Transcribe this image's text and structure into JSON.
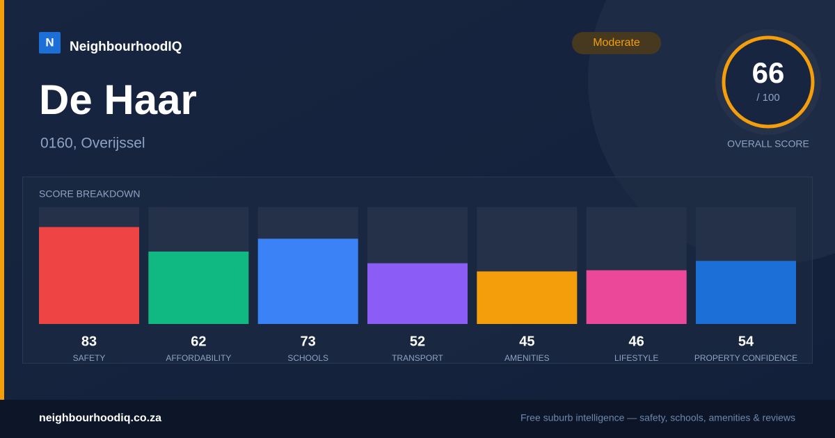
{
  "header": {
    "logo": "N",
    "brand": "NeighbourhoodIQ",
    "title": "De Haar",
    "location": "0160, Overijssel",
    "badge": "Moderate"
  },
  "score": {
    "value": 66,
    "suffix": "/ 100",
    "label": "OVERALL SCORE"
  },
  "chart_data": {
    "type": "bar",
    "title": "SCORE BREAKDOWN",
    "categories": [
      "SAFETY",
      "AFFORDABILITY",
      "SCHOOLS",
      "TRANSPORT",
      "AMENITIES",
      "LIFESTYLE",
      "PROPERTY CONFIDENCE"
    ],
    "values": [
      83,
      62,
      73,
      52,
      45,
      46,
      54
    ],
    "colors": [
      "#ef4444",
      "#10b981",
      "#3b82f6",
      "#8b5cf6",
      "#f59e0b",
      "#ec4899",
      "#1d6fd8"
    ],
    "ylim": [
      0,
      100
    ]
  },
  "footer": {
    "domain": "neighbourhoodiq.co.za",
    "tagline": "Free suburb intelligence — safety, schools, amenities & reviews"
  }
}
